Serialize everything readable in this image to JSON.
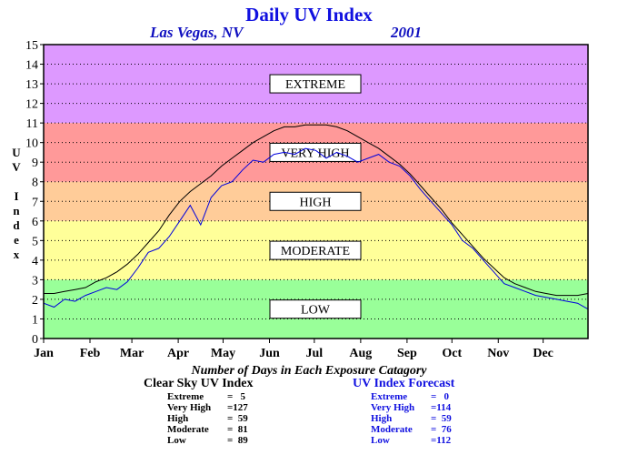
{
  "chart_data": {
    "type": "line",
    "title": "Daily UV Index",
    "subtitle_location": "Las Vegas, NV",
    "subtitle_year": "2001",
    "ylabel": "UV Index",
    "ylim": [
      0,
      15
    ],
    "yticks": [
      0,
      1,
      2,
      3,
      4,
      5,
      6,
      7,
      8,
      9,
      10,
      11,
      12,
      13,
      14,
      15
    ],
    "xlim": [
      1,
      365
    ],
    "month_labels": [
      "Jan",
      "Feb",
      "Mar",
      "Apr",
      "May",
      "Jun",
      "Jul",
      "Aug",
      "Sep",
      "Oct",
      "Nov",
      "Dec"
    ],
    "month_starts": [
      1,
      32,
      60,
      91,
      121,
      152,
      182,
      213,
      244,
      274,
      305,
      335
    ],
    "grid": "dotted horizontal",
    "bands": [
      {
        "label": "LOW",
        "from": 0,
        "to": 3,
        "color": "#99ff99"
      },
      {
        "label": "MODERATE",
        "from": 3,
        "to": 6,
        "color": "#ffff99"
      },
      {
        "label": "HIGH",
        "from": 6,
        "to": 8,
        "color": "#ffcc99"
      },
      {
        "label": "VERY HIGH",
        "from": 8,
        "to": 11,
        "color": "#ff9999"
      },
      {
        "label": "EXTREME",
        "from": 11,
        "to": 15,
        "color": "#dd99ff"
      }
    ],
    "series": [
      {
        "name": "Clear Sky UV Index",
        "color": "#000000",
        "x": [
          1,
          8,
          15,
          22,
          29,
          36,
          43,
          50,
          57,
          64,
          71,
          78,
          85,
          92,
          99,
          106,
          113,
          120,
          127,
          134,
          141,
          148,
          155,
          162,
          169,
          176,
          183,
          190,
          197,
          204,
          211,
          218,
          225,
          232,
          239,
          246,
          253,
          260,
          267,
          274,
          281,
          288,
          295,
          302,
          309,
          316,
          323,
          330,
          337,
          344,
          351,
          358,
          365
        ],
        "y": [
          2.3,
          2.3,
          2.4,
          2.5,
          2.6,
          2.9,
          3.1,
          3.4,
          3.8,
          4.3,
          4.9,
          5.5,
          6.3,
          7.0,
          7.5,
          7.9,
          8.3,
          8.8,
          9.2,
          9.6,
          10.0,
          10.3,
          10.6,
          10.8,
          10.8,
          10.9,
          10.9,
          10.9,
          10.8,
          10.6,
          10.3,
          10.0,
          9.7,
          9.3,
          8.9,
          8.4,
          7.8,
          7.2,
          6.6,
          5.9,
          5.3,
          4.7,
          4.1,
          3.6,
          3.1,
          2.8,
          2.6,
          2.4,
          2.3,
          2.2,
          2.2,
          2.2,
          2.3
        ]
      },
      {
        "name": "UV Index Forecast",
        "color": "#0000dd",
        "x": [
          1,
          8,
          15,
          22,
          29,
          36,
          43,
          50,
          57,
          64,
          71,
          78,
          85,
          92,
          99,
          106,
          113,
          120,
          127,
          134,
          141,
          148,
          155,
          162,
          169,
          176,
          183,
          190,
          197,
          204,
          211,
          218,
          225,
          232,
          239,
          246,
          253,
          260,
          267,
          274,
          281,
          288,
          295,
          302,
          309,
          316,
          323,
          330,
          337,
          344,
          351,
          358,
          365
        ],
        "y": [
          1.8,
          1.6,
          2.0,
          1.9,
          2.2,
          2.4,
          2.6,
          2.5,
          2.9,
          3.6,
          4.4,
          4.6,
          5.2,
          6.0,
          6.8,
          5.8,
          7.2,
          7.8,
          8.0,
          8.6,
          9.1,
          9.0,
          9.4,
          9.5,
          9.4,
          9.7,
          9.6,
          9.2,
          9.5,
          9.3,
          9.0,
          9.2,
          9.4,
          9.0,
          8.8,
          8.3,
          7.6,
          7.0,
          6.4,
          5.8,
          5.0,
          4.6,
          4.0,
          3.4,
          2.8,
          2.6,
          2.4,
          2.2,
          2.1,
          2.0,
          1.9,
          1.8,
          1.5
        ]
      }
    ]
  },
  "table": {
    "caption": "Number of Days in Each Exposure Catagory",
    "clear_sky": {
      "heading": "Clear Sky UV Index",
      "rows": [
        {
          "label": "Extreme",
          "value": "=   5"
        },
        {
          "label": "Very High",
          "value": "=127"
        },
        {
          "label": "High",
          "value": "=  59"
        },
        {
          "label": "Moderate",
          "value": "=  81"
        },
        {
          "label": "Low",
          "value": "=  89"
        }
      ]
    },
    "forecast": {
      "heading": "UV Index Forecast",
      "rows": [
        {
          "label": "Extreme",
          "value": "=   0"
        },
        {
          "label": "Very High",
          "value": "=114"
        },
        {
          "label": "High",
          "value": "=  59"
        },
        {
          "label": "Moderate",
          "value": "=  76"
        },
        {
          "label": "Low",
          "value": "=112"
        }
      ]
    }
  }
}
